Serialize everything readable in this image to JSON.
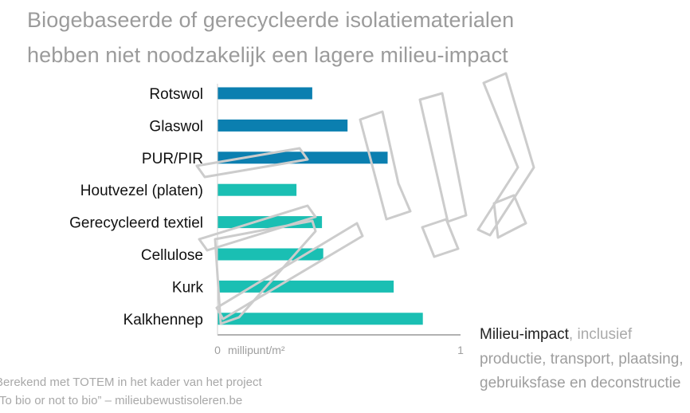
{
  "title_line1": "Biogebaseerde of gerecycleerde isolatiematerialen",
  "title_line2": "hebben niet noodzakelijk een lagere milieu-impact",
  "x_note": {
    "line1_main": "Milieu-impact",
    "line1_rest": ", inclusief",
    "line2": "productie, transport, plaatsing,",
    "line3": "gebruiksfase en deconstructie"
  },
  "source_line1": "Berekend met TOTEM in het kader van het project",
  "source_line2": "“To bio or not to bio” – milieubewustisoleren.be",
  "chart_data": {
    "type": "bar",
    "orientation": "horizontal",
    "categories": [
      "Rotswol",
      "Glaswol",
      "PUR/PIR",
      "Houtvezel (platen)",
      "Gerecycleerd textiel",
      "Cellulose",
      "Kurk",
      "Kalkhennep"
    ],
    "values": [
      0.39,
      0.535,
      0.7,
      0.325,
      0.43,
      0.435,
      0.725,
      0.845
    ],
    "bar_colors": [
      "#0b7fb0",
      "#0b7fb0",
      "#0b7fb0",
      "#1abfb3",
      "#1abfb3",
      "#1abfb3",
      "#1abfb3",
      "#1abfb3"
    ],
    "xlim": [
      0,
      1
    ],
    "x_ticks": [
      "0",
      "1"
    ],
    "x_unit": "millipunt/m²",
    "ylabel": "",
    "grid": false,
    "legend": "none"
  }
}
